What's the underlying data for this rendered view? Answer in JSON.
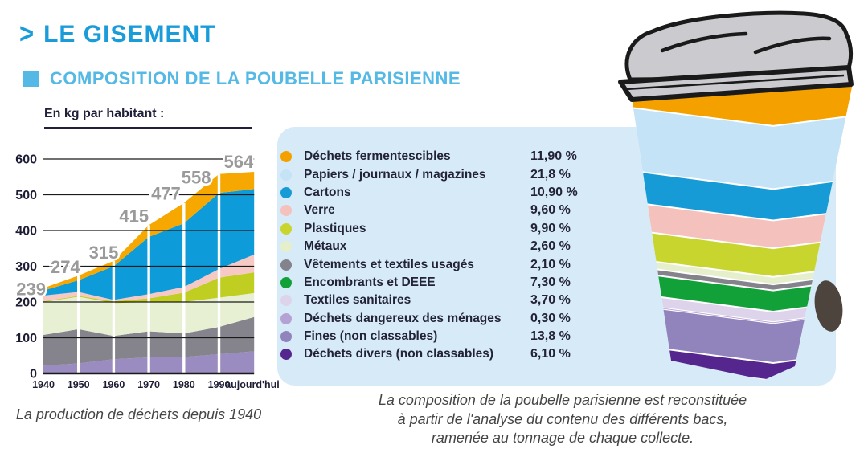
{
  "header": {
    "arrow": ">",
    "title": "LE GISEMENT",
    "subtitle": "COMPOSITION DE LA POUBELLE PARISIENNE",
    "title_color": "#199CD9",
    "subtitle_color": "#55B9E5"
  },
  "panel_color": "#D7EAF7",
  "chart": {
    "unit_label": "En kg par habitant :",
    "caption": "La production de déchets depuis 1940"
  },
  "chart_data": {
    "type": "area",
    "stacked": true,
    "title": "La production de déchets depuis 1940",
    "unit": "En kg par habitant :",
    "x_labels": [
      "1940",
      "1950",
      "1960",
      "1970",
      "1980",
      "1990",
      "aujourd'hui"
    ],
    "totals": [
      239,
      274,
      315,
      415,
      477,
      558,
      564
    ],
    "ylim": [
      0,
      600
    ],
    "yticks": [
      0,
      100,
      200,
      300,
      400,
      500,
      600
    ],
    "grid": true,
    "series": [
      {
        "name": "couche-violette",
        "color": "#9A8BC0",
        "values": [
          22,
          28,
          40,
          45,
          46,
          54,
          62
        ]
      },
      {
        "name": "couche-grise",
        "color": "#85838B",
        "values": [
          86,
          96,
          65,
          73,
          66,
          76,
          96
        ]
      },
      {
        "name": "couche-vert-pale",
        "color": "#E7F0D3",
        "values": [
          92,
          91,
          92,
          82,
          88,
          82,
          67
        ]
      },
      {
        "name": "couche-vert-olive",
        "color": "#C0CE22",
        "values": [
          2,
          2,
          5,
          10,
          26,
          56,
          58
        ]
      },
      {
        "name": "couche-rose",
        "color": "#F6C9C4",
        "values": [
          16,
          11,
          4,
          12,
          16,
          24,
          50
        ]
      },
      {
        "name": "couche-bleue",
        "color": "#0D9BD9",
        "values": [
          14,
          33,
          94,
          160,
          178,
          213,
          183
        ]
      },
      {
        "name": "couche-orange",
        "color": "#F6A800",
        "values": [
          7,
          13,
          15,
          33,
          57,
          53,
          48
        ]
      }
    ]
  },
  "legend": {
    "items": [
      {
        "label": "Déchets fermentescibles",
        "pct_label": "11,90 %",
        "value": 11.9,
        "color": "#F4A100"
      },
      {
        "label": "Papiers / journaux / magazines",
        "pct_label": "21,8 %",
        "value": 21.8,
        "color": "#C5E3F6"
      },
      {
        "label": "Cartons",
        "pct_label": "10,90 %",
        "value": 10.9,
        "color": "#169BD7"
      },
      {
        "label": "Verre",
        "pct_label": "9,60 %",
        "value": 9.6,
        "color": "#F4C1BC"
      },
      {
        "label": "Plastiques",
        "pct_label": "9,90 %",
        "value": 9.9,
        "color": "#C9D52F"
      },
      {
        "label": "Métaux",
        "pct_label": "2,60 %",
        "value": 2.6,
        "color": "#E5EFCB"
      },
      {
        "label": "Vêtements et textiles usagés",
        "pct_label": "2,10 %",
        "value": 2.1,
        "color": "#84828A"
      },
      {
        "label": "Encombrants et DEEE",
        "pct_label": "7,30 %",
        "value": 7.3,
        "color": "#12A038"
      },
      {
        "label": "Textiles sanitaires",
        "pct_label": "3,70 %",
        "value": 3.7,
        "color": "#DDD4EB"
      },
      {
        "label": "Déchets dangereux des ménages",
        "pct_label": "0,30 %",
        "value": 0.3,
        "color": "#B5A2D4"
      },
      {
        "label": "Fines (non classables)",
        "pct_label": "13,8 %",
        "value": 13.8,
        "color": "#9184BC"
      },
      {
        "label": "Déchets divers (non classables)",
        "pct_label": "6,10 %",
        "value": 6.1,
        "color": "#55268E"
      }
    ]
  },
  "bin": {
    "lid_color": "#CBCACF",
    "outline_color": "#1A1A1A",
    "wheel_color": "#4D443D"
  },
  "captions": {
    "right_lines": [
      "La composition de la poubelle parisienne est reconstituée",
      "à partir de l'analyse du contenu des différents bacs,",
      "ramenée au tonnage de chaque collecte."
    ]
  }
}
